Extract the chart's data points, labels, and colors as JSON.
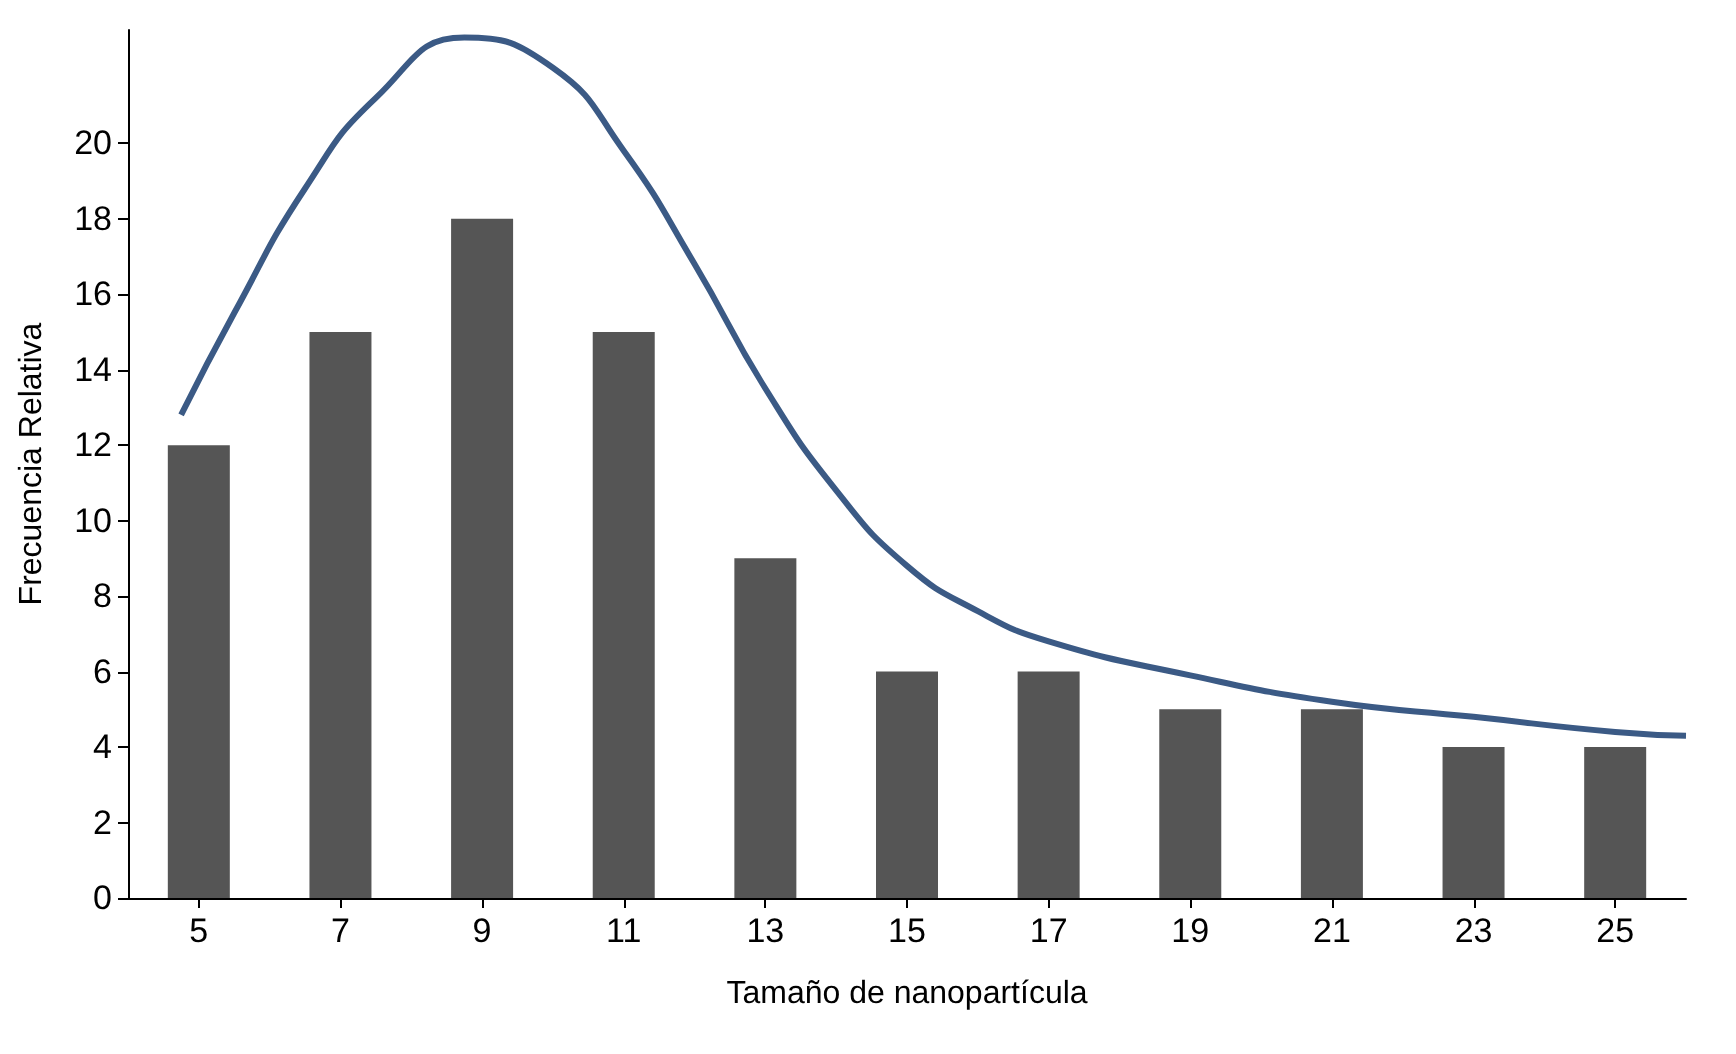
{
  "chart_data": {
    "type": "bar",
    "xlabel": "Tamaño de nanopartícula",
    "ylabel": "Frecuencia Relativa",
    "xlim": [
      4,
      26
    ],
    "xticks": [
      5,
      7,
      9,
      11,
      13,
      15,
      17,
      19,
      21,
      23,
      25
    ],
    "ylim": [
      0,
      23
    ],
    "yticks": [
      0,
      2,
      4,
      6,
      8,
      10,
      12,
      14,
      16,
      18,
      20
    ],
    "grid": false,
    "series": [
      {
        "color": "#555555",
        "x": [
          5,
          7,
          9,
          11,
          13,
          15,
          17,
          19,
          21,
          23,
          25
        ],
        "values": [
          12,
          15,
          18,
          15,
          9,
          6,
          6,
          5,
          5,
          4,
          4
        ]
      },
      {
        "type": "line",
        "color": "#3b5a85",
        "marker": "none",
        "line_style": "solid",
        "x": [
          4.75,
          5.5,
          6.5,
          7.5,
          8.75,
          10,
          11,
          12,
          13,
          14,
          15,
          16,
          17,
          19,
          21,
          23,
          25,
          26
        ],
        "values": [
          12.8,
          15.5,
          18.8,
          21.2,
          22.8,
          22,
          19.8,
          16.8,
          13.5,
          10.8,
          8.8,
          7.6,
          6.8,
          5.9,
          5.2,
          4.8,
          4.4,
          4.3
        ]
      }
    ]
  }
}
